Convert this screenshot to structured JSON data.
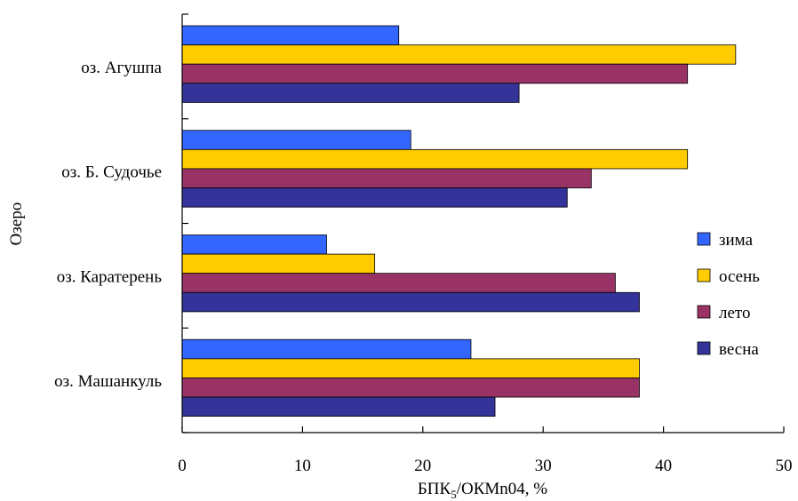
{
  "chart_data": {
    "type": "bar",
    "orientation": "horizontal",
    "categories": [
      "оз. Агушпа",
      "оз. Б. Судочье",
      "оз. Каратерень",
      "оз. Машанкуль"
    ],
    "series": [
      {
        "name": "зима",
        "color": "#3366ff",
        "values": [
          18,
          19,
          12,
          24
        ]
      },
      {
        "name": "осень",
        "color": "#ffcc00",
        "values": [
          46,
          42,
          16,
          38
        ]
      },
      {
        "name": "лето",
        "color": "#993366",
        "values": [
          42,
          34,
          36,
          38
        ]
      },
      {
        "name": "весна",
        "color": "#333399",
        "values": [
          28,
          32,
          38,
          26
        ]
      }
    ],
    "x_ticks": [
      "0",
      "10",
      "20",
      "30",
      "40",
      "50"
    ],
    "xlim": [
      0,
      50
    ],
    "xlabel": {
      "main": "БПК",
      "sub": "5",
      "rest": "/ОКМn04, %"
    },
    "ylabel": "Озеро",
    "grid": false,
    "legend_position": "right"
  }
}
